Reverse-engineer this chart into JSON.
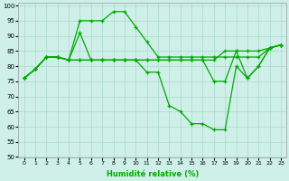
{
  "xlabel": "Humidité relative (%)",
  "background_color": "#cff0e8",
  "grid_color": "#aad8cc",
  "line_color": "#00aa00",
  "ylim": [
    50,
    101
  ],
  "xlim": [
    -0.5,
    23.5
  ],
  "yticks": [
    50,
    55,
    60,
    65,
    70,
    75,
    80,
    85,
    90,
    95,
    100
  ],
  "xticks": [
    0,
    1,
    2,
    3,
    4,
    5,
    6,
    7,
    8,
    9,
    10,
    11,
    12,
    13,
    14,
    15,
    16,
    17,
    18,
    19,
    20,
    21,
    22,
    23
  ],
  "series": [
    [
      76,
      79,
      83,
      83,
      82,
      95,
      95,
      95,
      98,
      98,
      93,
      88,
      83,
      83,
      83,
      83,
      83,
      83,
      83,
      83,
      83,
      83,
      86,
      87
    ],
    [
      76,
      79,
      83,
      83,
      82,
      91,
      82,
      82,
      82,
      82,
      82,
      82,
      82,
      82,
      82,
      82,
      82,
      82,
      85,
      85,
      85,
      85,
      86,
      87
    ],
    [
      76,
      79,
      83,
      83,
      82,
      82,
      82,
      82,
      82,
      82,
      82,
      82,
      82,
      82,
      82,
      82,
      82,
      75,
      75,
      85,
      76,
      80,
      86,
      87
    ],
    [
      76,
      79,
      83,
      83,
      82,
      82,
      82,
      82,
      82,
      82,
      82,
      78,
      78,
      67,
      65,
      61,
      61,
      59,
      59,
      80,
      76,
      80,
      86,
      87
    ]
  ]
}
